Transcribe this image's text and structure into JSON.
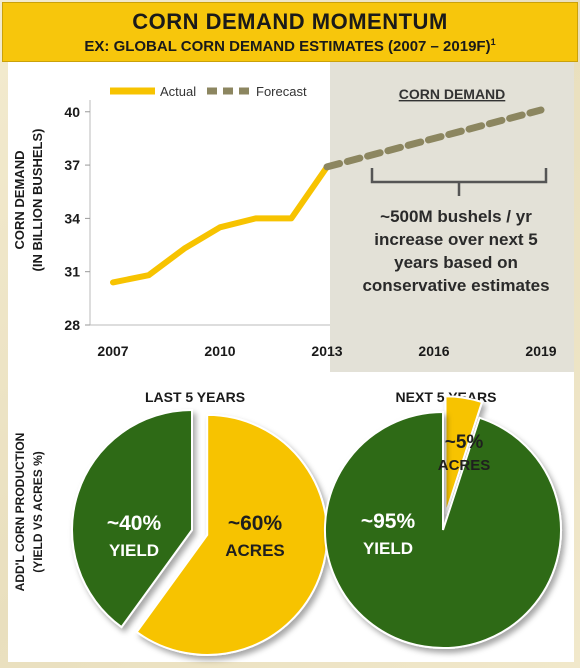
{
  "header": {
    "title": "CORN DEMAND MOMENTUM",
    "subtitle": "EX: GLOBAL CORN DEMAND ESTIMATES (2007 – 2019F)",
    "subtitle_sup": "1"
  },
  "line_chart": {
    "ylabel_1": "CORN DEMAND",
    "ylabel_2": "(IN BILLION BUSHELS)",
    "legend_actual": "Actual",
    "legend_forecast": "Forecast",
    "shaded_heading": "CORN DEMAND",
    "annotation": [
      "~500M bushels / yr",
      "increase over next 5",
      "years based on",
      "conservative estimates"
    ]
  },
  "pie_section": {
    "ylabel_1": "ADD'L CORN PRODUCTION",
    "ylabel_2": "(YIELD VS ACRES %)",
    "left_title": "LAST 5 YEARS",
    "right_title": "NEXT 5 YEARS"
  },
  "colors": {
    "actual": "#f7c300",
    "forecast": "#8c8660",
    "yield_green": "#2f6b16",
    "acres_gold": "#f7c300",
    "header": "#f7c60c"
  },
  "chart_data": [
    {
      "type": "line",
      "title": "CORN DEMAND MOMENTUM",
      "xlabel": "",
      "ylabel": "CORN DEMAND (IN BILLION BUSHELS)",
      "x_ticks": [
        "2007",
        "2010",
        "2013",
        "2016",
        "2019"
      ],
      "y_ticks": [
        "28",
        "31",
        "34",
        "37",
        "40"
      ],
      "xlim": [
        2007,
        2019
      ],
      "ylim": [
        28,
        41
      ],
      "series": [
        {
          "name": "Actual",
          "x": [
            2007,
            2008,
            2009,
            2010,
            2011,
            2012,
            2013
          ],
          "y": [
            30.4,
            30.8,
            32.3,
            33.5,
            34.0,
            34.0,
            36.9
          ]
        },
        {
          "name": "Forecast",
          "x": [
            2013,
            2019
          ],
          "y": [
            36.9,
            40.1
          ]
        }
      ],
      "legend": "top-left"
    },
    {
      "type": "pie",
      "title": "LAST 5 YEARS",
      "slices": [
        {
          "label": "~60% ACRES",
          "line1": "~60%",
          "line2": "ACRES",
          "value": 60,
          "color": "#f7c300"
        },
        {
          "label": "~40% YIELD",
          "line1": "~40%",
          "line2": "YIELD",
          "value": 40,
          "color": "#2f6b16"
        }
      ]
    },
    {
      "type": "pie",
      "title": "NEXT 5 YEARS",
      "slices": [
        {
          "label": "~5% ACRES",
          "line1": "~5%",
          "line2": "ACRES",
          "value": 5,
          "color": "#f7c300"
        },
        {
          "label": "~95% YIELD",
          "line1": "~95%",
          "line2": "YIELD",
          "value": 95,
          "color": "#2f6b16"
        }
      ]
    }
  ]
}
